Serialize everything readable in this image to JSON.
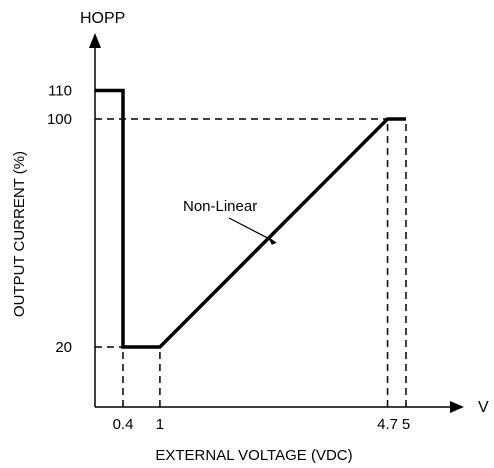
{
  "colors": {
    "line": "#000000",
    "background": "#ffffff"
  },
  "chart_data": {
    "type": "line",
    "title": "",
    "xlabel": "EXTERNAL VOLTAGE (VDC)",
    "ylabel": "OUTPUT CURRENT (%)",
    "x_axis_end_label": "V",
    "y_axis_end_label": "HOPP",
    "xlim": [
      0,
      5.4
    ],
    "ylim": [
      0,
      125
    ],
    "x_ticks": [
      {
        "value": 0.4,
        "label": "0.4"
      },
      {
        "value": 1,
        "label": "1"
      },
      {
        "value": 4.7,
        "label": "4.7"
      },
      {
        "value": 5,
        "label": "5"
      }
    ],
    "y_ticks": [
      {
        "value": 20,
        "label": "20"
      },
      {
        "value": 100,
        "label": "100"
      },
      {
        "value": 110,
        "label": "110"
      }
    ],
    "series": [
      {
        "points": [
          {
            "x": 0,
            "y": 110
          },
          {
            "x": 0.4,
            "y": 110
          },
          {
            "x": 0.4,
            "y": 20
          },
          {
            "x": 1,
            "y": 20
          },
          {
            "x": 4.7,
            "y": 100
          },
          {
            "x": 5,
            "y": 100
          }
        ]
      }
    ],
    "reference_lines": [
      {
        "type": "horizontal",
        "y": 100,
        "x_from": 0,
        "x_to": 4.7
      },
      {
        "type": "horizontal",
        "y": 20,
        "x_from": 0,
        "x_to": 0.4
      },
      {
        "type": "vertical",
        "x": 0.4,
        "y_from": 0,
        "y_to": 20
      },
      {
        "type": "vertical",
        "x": 1,
        "y_from": 0,
        "y_to": 20
      },
      {
        "type": "vertical",
        "x": 4.7,
        "y_from": 0,
        "y_to": 100
      },
      {
        "type": "vertical",
        "x": 5,
        "y_from": 0,
        "y_to": 100
      }
    ],
    "annotations": [
      {
        "text": "Non-Linear",
        "x": 2.9,
        "y": 58
      }
    ],
    "grid": false,
    "legend": "none"
  }
}
